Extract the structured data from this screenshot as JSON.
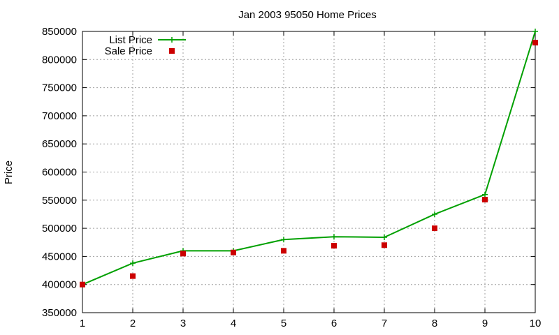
{
  "chart_data": {
    "type": "line",
    "title": "Jan 2003 95050 Home Prices",
    "xlabel": "",
    "ylabel": "Price",
    "x": [
      1,
      2,
      3,
      4,
      5,
      6,
      7,
      8,
      9,
      10
    ],
    "xlim": [
      1,
      10
    ],
    "ylim": [
      350000,
      850000
    ],
    "x_ticks": [
      "1",
      "2",
      "3",
      "4",
      "5",
      "6",
      "7",
      "8",
      "9",
      "10"
    ],
    "y_ticks": [
      "350000",
      "400000",
      "450000",
      "500000",
      "550000",
      "600000",
      "650000",
      "700000",
      "750000",
      "800000",
      "850000"
    ],
    "grid": true,
    "legend_position": "top-left",
    "series": [
      {
        "name": "List Price",
        "style": "line-with-plus-markers",
        "color": "#00a000",
        "values": [
          400000,
          438000,
          460000,
          460000,
          480000,
          485000,
          484000,
          525000,
          560000,
          850000
        ]
      },
      {
        "name": "Sale Price",
        "style": "square-points",
        "color": "#cc0000",
        "values": [
          400000,
          415000,
          455000,
          457000,
          460000,
          469000,
          470000,
          500000,
          551000,
          830000
        ]
      }
    ]
  }
}
